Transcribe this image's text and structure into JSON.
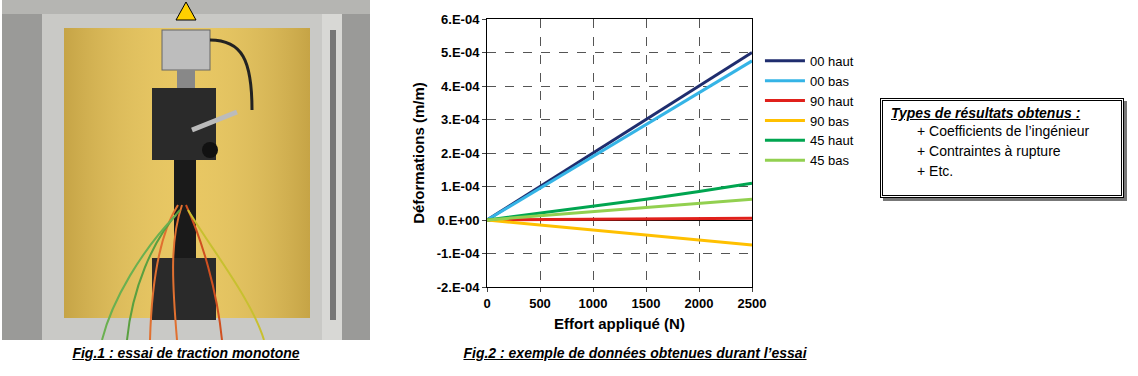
{
  "chart_data": {
    "type": "line",
    "x_label": "Effort appliqué (N)",
    "y_label": "Déformations (m/m)",
    "x": [
      0,
      500,
      1000,
      1500,
      2000,
      2500
    ],
    "series": [
      {
        "name": "00 haut",
        "color": "#1f2d6e",
        "values": [
          0,
          0.0001,
          0.0002,
          0.0003,
          0.0004,
          0.0005
        ]
      },
      {
        "name": "00 bas",
        "color": "#35b4e6",
        "values": [
          0,
          9.5e-05,
          0.00019,
          0.000285,
          0.00038,
          0.000475
        ]
      },
      {
        "name": "90 haut",
        "color": "#e0201b",
        "values": [
          0,
          1e-06,
          2e-06,
          3e-06,
          4e-06,
          5e-06
        ]
      },
      {
        "name": "90 bas",
        "color": "#ffc000",
        "values": [
          0,
          -1.5e-05,
          -3e-05,
          -4.5e-05,
          -6e-05,
          -7.5e-05
        ]
      },
      {
        "name": "45 haut",
        "color": "#00a550",
        "values": [
          0,
          2e-05,
          4e-05,
          6.2e-05,
          8.5e-05,
          0.00011
        ]
      },
      {
        "name": "45 bas",
        "color": "#92d050",
        "values": [
          0,
          1.2e-05,
          2.4e-05,
          3.6e-05,
          4.8e-05,
          6.2e-05
        ]
      }
    ],
    "xlim": [
      0,
      2500
    ],
    "xticks": [
      0,
      500,
      1000,
      1500,
      2000,
      2500
    ],
    "ylim": [
      -0.0002,
      0.0006
    ],
    "yticks": [
      {
        "value": -0.0002,
        "label": "-2.E-04"
      },
      {
        "value": -0.0001,
        "label": "-1.E-04"
      },
      {
        "value": 0,
        "label": "0.E+00"
      },
      {
        "value": 0.0001,
        "label": "1.E-04"
      },
      {
        "value": 0.0002,
        "label": "2.E-04"
      },
      {
        "value": 0.0003,
        "label": "3.E-04"
      },
      {
        "value": 0.0004,
        "label": "4.E-04"
      },
      {
        "value": 0.0005,
        "label": "5.E-04"
      },
      {
        "value": 0.0006,
        "label": "6.E-04"
      }
    ],
    "grid": true,
    "legend": "right"
  },
  "figures": [
    {
      "caption": "Fig.1 : essai de traction monotone"
    },
    {
      "caption": "Fig.2 : exemple de données obtenues durant l’essai"
    }
  ],
  "results_box": {
    "title": "Types de résultats obtenus :",
    "items": [
      "+ Coefficients de l’ingénieur",
      "+ Contraintes à rupture",
      "+ Etc."
    ]
  }
}
